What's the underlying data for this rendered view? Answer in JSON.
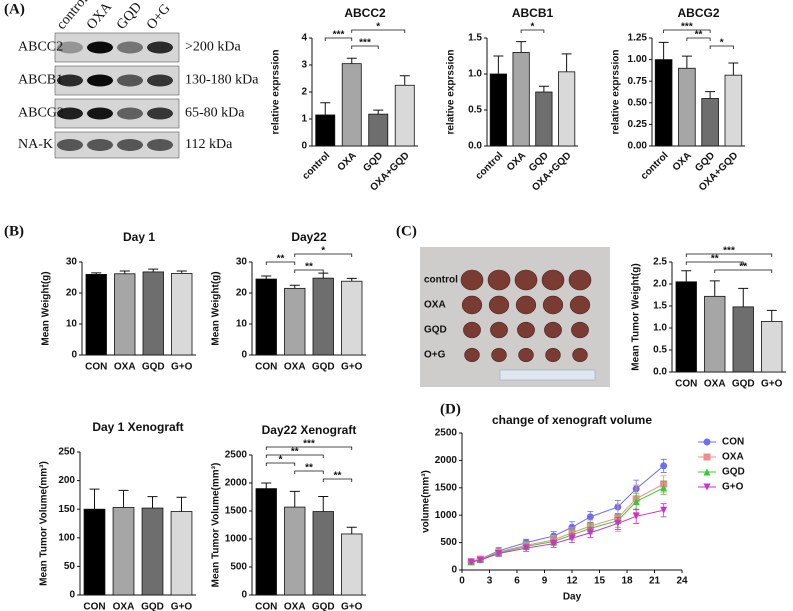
{
  "panels": [
    "(A)",
    "(B)",
    "(C)",
    "(D)"
  ],
  "blot": {
    "lanes": [
      "control",
      "OXA",
      "GQD",
      "O+G"
    ],
    "rows": [
      {
        "protein": "ABCC2",
        "size": ">200 kDa"
      },
      {
        "protein": "ABCB1",
        "size": "130-180 kDa"
      },
      {
        "protein": "ABCG2",
        "size": "65-80 kDa"
      },
      {
        "protein": "NA-K",
        "size": "112 kDa"
      }
    ]
  },
  "photo": {
    "rows": [
      "control",
      "OXA",
      "GQD",
      "O+G"
    ]
  },
  "chart_data": [
    {
      "type": "bar",
      "title": "ABCC2",
      "ylabel": "relative exprssion",
      "categories": [
        "control",
        "OXA",
        "GQD",
        "OXA+GQD"
      ],
      "values": [
        1.15,
        3.05,
        1.18,
        2.25
      ],
      "errors": [
        0.45,
        0.2,
        0.15,
        0.35
      ],
      "colors": [
        "#000000",
        "#a6a6a6",
        "#6e6e6e",
        "#d9d9d9"
      ],
      "ylim": [
        0,
        4
      ],
      "yticks": [
        0,
        1,
        2,
        3,
        4
      ],
      "rotated_labels": true,
      "annotations": [
        {
          "from": 1,
          "to": 3,
          "text": "*"
        },
        {
          "from": 0,
          "to": 1,
          "text": "***"
        },
        {
          "from": 1,
          "to": 2,
          "text": "***"
        }
      ]
    },
    {
      "type": "bar",
      "title": "ABCB1",
      "ylabel": "relative exprssion",
      "categories": [
        "control",
        "OXA",
        "GQD",
        "OXA+GQD"
      ],
      "values": [
        1.0,
        1.3,
        0.75,
        1.03
      ],
      "errors": [
        0.25,
        0.15,
        0.08,
        0.25
      ],
      "colors": [
        "#000000",
        "#a6a6a6",
        "#6e6e6e",
        "#d9d9d9"
      ],
      "ylim": [
        0,
        1.5
      ],
      "yticks": [
        {
          "value": 0,
          "label": "0.0"
        },
        {
          "value": 0.5,
          "label": "0.5"
        },
        {
          "value": 1,
          "label": "1.0"
        },
        {
          "value": 1.5,
          "label": "1.5"
        }
      ],
      "rotated_labels": true,
      "annotations": [
        {
          "from": 1,
          "to": 2,
          "text": "*"
        }
      ]
    },
    {
      "type": "bar",
      "title": "ABCG2",
      "ylabel": "relative exprssion",
      "categories": [
        "control",
        "OXA",
        "GQD",
        "OXA+GQD"
      ],
      "values": [
        1.0,
        0.9,
        0.55,
        0.82
      ],
      "errors": [
        0.2,
        0.14,
        0.08,
        0.14
      ],
      "colors": [
        "#000000",
        "#a6a6a6",
        "#6e6e6e",
        "#d9d9d9"
      ],
      "ylim": [
        0,
        1.25
      ],
      "yticks": [
        {
          "value": 0,
          "label": "0.00"
        },
        {
          "value": 0.25,
          "label": "0.25"
        },
        {
          "value": 0.5,
          "label": "0.50"
        },
        {
          "value": 0.75,
          "label": "0.75"
        },
        {
          "value": 1,
          "label": "1.00"
        },
        {
          "value": 1.25,
          "label": "1.25"
        }
      ],
      "rotated_labels": true,
      "annotations": [
        {
          "from": 0,
          "to": 2,
          "text": "***"
        },
        {
          "from": 1,
          "to": 2,
          "text": "**"
        },
        {
          "from": 2,
          "to": 3,
          "text": "*"
        }
      ]
    },
    {
      "type": "bar",
      "title": "Day 1",
      "ylabel": "Mean Weight(g)",
      "categories": [
        "CON",
        "OXA",
        "GQD",
        "G+O"
      ],
      "values": [
        26,
        26.2,
        26.8,
        26.3
      ],
      "errors": [
        0.5,
        0.9,
        0.9,
        0.8
      ],
      "colors": [
        "#000000",
        "#a6a6a6",
        "#6e6e6e",
        "#d9d9d9"
      ],
      "ylim": [
        0,
        30
      ],
      "yticks": [
        0,
        10,
        20,
        30
      ],
      "rotated_labels": false,
      "annotations": []
    },
    {
      "type": "bar",
      "title": "Day22",
      "ylabel": "Mean Weight(g)",
      "categories": [
        "CON",
        "OXA",
        "GQD",
        "G+O"
      ],
      "values": [
        24.5,
        21.5,
        24.8,
        23.8
      ],
      "errors": [
        1.0,
        1.0,
        1.6,
        0.9
      ],
      "colors": [
        "#000000",
        "#a6a6a6",
        "#6e6e6e",
        "#d9d9d9"
      ],
      "ylim": [
        0,
        30
      ],
      "yticks": [
        0,
        10,
        20,
        30
      ],
      "rotated_labels": false,
      "annotations": [
        {
          "from": 1,
          "to": 3,
          "text": "*"
        },
        {
          "from": 0,
          "to": 1,
          "text": "**"
        },
        {
          "from": 1,
          "to": 2,
          "text": "**"
        }
      ]
    },
    {
      "type": "bar",
      "title": "Day 1 Xenograft",
      "ylabel": "Mean Tumor Volume(mm³)",
      "categories": [
        "CON",
        "OXA",
        "GQD",
        "G+O"
      ],
      "values": [
        150,
        153,
        152,
        146
      ],
      "errors": [
        35,
        30,
        20,
        25
      ],
      "colors": [
        "#000000",
        "#a6a6a6",
        "#6e6e6e",
        "#d9d9d9"
      ],
      "ylim": [
        0,
        250
      ],
      "yticks": [
        0,
        50,
        100,
        150,
        200,
        250
      ],
      "rotated_labels": false,
      "annotations": []
    },
    {
      "type": "bar",
      "title": "Day22 Xenograft",
      "ylabel": "Mean Tumor Volume(mm³)",
      "categories": [
        "CON",
        "OXA",
        "GQD",
        "G+O"
      ],
      "values": [
        1900,
        1570,
        1490,
        1090
      ],
      "errors": [
        100,
        280,
        270,
        120
      ],
      "colors": [
        "#000000",
        "#a6a6a6",
        "#6e6e6e",
        "#d9d9d9"
      ],
      "ylim": [
        0,
        2500
      ],
      "yticks": [
        0,
        500,
        1000,
        1500,
        2000,
        2500
      ],
      "rotated_labels": false,
      "annotations": [
        {
          "from": 0,
          "to": 3,
          "text": "***"
        },
        {
          "from": 0,
          "to": 2,
          "text": "**"
        },
        {
          "from": 0,
          "to": 1,
          "text": "*"
        },
        {
          "from": 1,
          "to": 2,
          "text": "**"
        },
        {
          "from": 2,
          "to": 3,
          "text": "**"
        }
      ]
    },
    {
      "type": "bar",
      "ylabel": "Mean Tumor Weight(g)",
      "categories": [
        "CON",
        "OXA",
        "GQD",
        "G+O"
      ],
      "values": [
        2.05,
        1.72,
        1.48,
        1.15
      ],
      "errors": [
        0.25,
        0.35,
        0.42,
        0.25
      ],
      "colors": [
        "#000000",
        "#a6a6a6",
        "#6e6e6e",
        "#d9d9d9"
      ],
      "ylim": [
        0,
        2.5
      ],
      "yticks": [
        {
          "value": 0,
          "label": "0.0"
        },
        {
          "value": 0.5,
          "label": "0.5"
        },
        {
          "value": 1,
          "label": "1.0"
        },
        {
          "value": 1.5,
          "label": "1.5"
        },
        {
          "value": 2,
          "label": "2.0"
        },
        {
          "value": 2.5,
          "label": "2.5"
        }
      ],
      "rotated_labels": false,
      "annotations": [
        {
          "from": 0,
          "to": 3,
          "text": "***"
        },
        {
          "from": 0,
          "to": 2,
          "text": "**"
        },
        {
          "from": 1,
          "to": 3,
          "text": "**"
        }
      ]
    },
    {
      "type": "line",
      "title": "change of xenograft volume",
      "xlabel": "Day",
      "ylabel": "volume(mm³)",
      "x": [
        1,
        2,
        4,
        7,
        10,
        12,
        14,
        17,
        19,
        22
      ],
      "xlim": [
        0,
        24
      ],
      "xticks": [
        0,
        3,
        6,
        9,
        12,
        15,
        18,
        21,
        24
      ],
      "ylim": [
        0,
        2500
      ],
      "yticks": [
        0,
        500,
        1000,
        1500,
        2000,
        2500
      ],
      "series": [
        {
          "name": "CON",
          "color": "#6b6ff0",
          "marker": "circle",
          "values": [
            150,
            200,
            350,
            500,
            620,
            780,
            970,
            1150,
            1480,
            1900
          ],
          "errors": [
            20,
            30,
            60,
            60,
            80,
            100,
            100,
            120,
            160,
            120
          ]
        },
        {
          "name": "OXA",
          "color": "#f28c8c",
          "marker": "square",
          "values": [
            150,
            200,
            330,
            450,
            550,
            680,
            800,
            950,
            1300,
            1570
          ],
          "errors": [
            20,
            30,
            50,
            60,
            80,
            90,
            110,
            250,
            250,
            150
          ]
        },
        {
          "name": "GQD",
          "color": "#33cc33",
          "marker": "triangle",
          "values": [
            150,
            190,
            310,
            430,
            520,
            640,
            760,
            900,
            1250,
            1500
          ],
          "errors": [
            20,
            30,
            50,
            60,
            70,
            90,
            100,
            120,
            150,
            120
          ]
        },
        {
          "name": "G+O",
          "color": "#cc33cc",
          "marker": "triangle-down",
          "values": [
            145,
            180,
            300,
            400,
            480,
            580,
            680,
            850,
            980,
            1090
          ],
          "errors": [
            20,
            30,
            50,
            60,
            70,
            80,
            90,
            110,
            130,
            120
          ]
        }
      ]
    }
  ]
}
